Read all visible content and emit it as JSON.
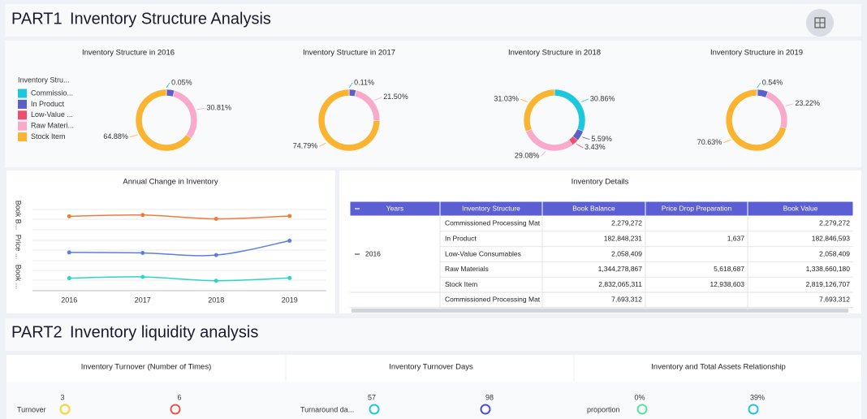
{
  "part1": {
    "label": "PART1",
    "title": "Inventory Structure Analysis"
  },
  "chart_data": [
    {
      "type": "pie",
      "title": "Inventory Structure in 2016",
      "legend_title": "Inventory Stru...",
      "categories": [
        "Commissio...",
        "In Product",
        "Low-Value ...",
        "Raw Materi...",
        "Stock Item"
      ],
      "colors": [
        "#1ec8dc",
        "#5b5fc7",
        "#ef4f6f",
        "#f9aacb",
        "#fbb431"
      ],
      "values": [
        0.05,
        4.19,
        0.05,
        30.81,
        64.88
      ],
      "value_labels": [
        "0.05%",
        null,
        null,
        "30.81%",
        "64.88%"
      ]
    },
    {
      "type": "pie",
      "title": "Inventory Structure in 2017",
      "values": [
        0.11,
        3.55,
        0.05,
        21.5,
        74.79
      ],
      "value_labels": [
        "0.11%",
        null,
        null,
        "21.50%",
        "74.79%"
      ]
    },
    {
      "type": "pie",
      "title": "Inventory Structure in 2018",
      "values": [
        30.86,
        5.59,
        3.43,
        29.08,
        31.03
      ],
      "value_labels": [
        "30.86%",
        "5.59%",
        "3.43%",
        "29.08%",
        "31.03%"
      ]
    },
    {
      "type": "pie",
      "title": "Inventory Structure in 2019",
      "values": [
        0.54,
        5.56,
        0.05,
        23.22,
        70.63
      ],
      "value_labels": [
        "0.54%",
        null,
        null,
        "23.22%",
        "70.63%"
      ]
    },
    {
      "type": "line",
      "title": "Annual Change in Inventory",
      "categories": [
        "2016",
        "2017",
        "2018",
        "2019"
      ],
      "series": [
        {
          "name": "Book B...",
          "color": "#f07c3c",
          "values": [
            4363530090,
            4520000000,
            4050000000,
            4400000000
          ],
          "ylim": [
            3000000000,
            6000000000
          ]
        },
        {
          "name": "Price ...",
          "color": "#5b7fe0",
          "values": [
            18558927,
            18000000,
            15500000,
            32000000
          ],
          "ylim": [
            10000000,
            40000000
          ]
        },
        {
          "name": "Book ...",
          "color": "#2fd3c8",
          "values": [
            4344971161,
            4500000000,
            4030000000,
            4370000000
          ],
          "ylim": [
            3000000000,
            6000000000
          ]
        }
      ]
    }
  ],
  "table": {
    "title": "Inventory Details",
    "columns": [
      "Years",
      "Inventory Structure",
      "Book Balance",
      "Price Drop Preparation",
      "Book Value"
    ],
    "groups": [
      {
        "year": "2016",
        "rows": [
          [
            "Commissioned Processing Mat",
            "2,279,272",
            null,
            "2,279,272"
          ],
          [
            "In Product",
            "182,848,231",
            "1,637",
            "182,846,593"
          ],
          [
            "Low-Value Consumables",
            "2,058,409",
            null,
            "2,058,409"
          ],
          [
            "Raw Materials",
            "1,344,278,867",
            "5,618,687",
            "1,338,660,180"
          ],
          [
            "Stock Item",
            "2,832,065,311",
            "12,938,603",
            "2,819,126,707"
          ]
        ]
      },
      {
        "rows": [
          [
            "Commissioned Processing Mat",
            "7,693,312",
            null,
            "7,693,312"
          ]
        ]
      }
    ]
  },
  "part2": {
    "label": "PART2",
    "title": "Inventory liquidity analysis",
    "cards": [
      {
        "title": "Inventory Turnover (Number of Times)",
        "label": "Turnover",
        "min": "3",
        "max": "6"
      },
      {
        "title": "Inventory Turnover Days",
        "label": "Turnaround da...",
        "min": "57",
        "max": "98"
      },
      {
        "title": "Inventory and Total Assets Relationship",
        "label": "proportion",
        "min": "0%",
        "max": "39%"
      }
    ]
  }
}
